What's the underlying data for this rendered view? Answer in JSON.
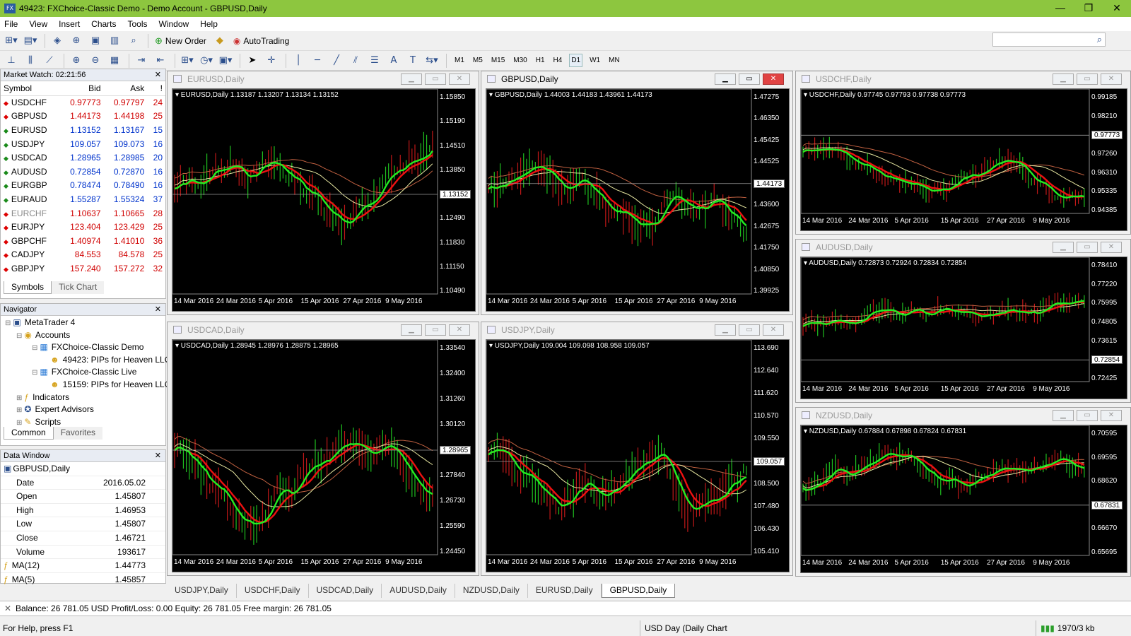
{
  "window": {
    "title": "49423: FXChoice-Classic Demo - Demo Account - GBPUSD,Daily",
    "minimize": "—",
    "restore": "❐",
    "close": "✕"
  },
  "menu": [
    "File",
    "View",
    "Insert",
    "Charts",
    "Tools",
    "Window",
    "Help"
  ],
  "toolbar": {
    "new_order": "New Order",
    "autotrading": "AutoTrading"
  },
  "timeframes": [
    "M1",
    "M5",
    "M15",
    "M30",
    "H1",
    "H4",
    "D1",
    "W1",
    "MN"
  ],
  "active_timeframe": "D1",
  "market_watch": {
    "title": "Market Watch: 02:21:56",
    "columns": [
      "Symbol",
      "Bid",
      "Ask",
      "!"
    ],
    "rows": [
      [
        "USDCHF",
        "0.97773",
        "0.97797",
        "24"
      ],
      [
        "GBPUSD",
        "1.44173",
        "1.44198",
        "25"
      ],
      [
        "EURUSD",
        "1.13152",
        "1.13167",
        "15"
      ],
      [
        "USDJPY",
        "109.057",
        "109.073",
        "16"
      ],
      [
        "USDCAD",
        "1.28965",
        "1.28985",
        "20"
      ],
      [
        "AUDUSD",
        "0.72854",
        "0.72870",
        "16"
      ],
      [
        "EURGBP",
        "0.78474",
        "0.78490",
        "16"
      ],
      [
        "EURAUD",
        "1.55287",
        "1.55324",
        "37"
      ],
      [
        "EURCHF",
        "1.10637",
        "1.10665",
        "28"
      ],
      [
        "EURJPY",
        "123.404",
        "123.429",
        "25"
      ],
      [
        "GBPCHF",
        "1.40974",
        "1.41010",
        "36"
      ],
      [
        "CADJPY",
        "84.553",
        "84.578",
        "25"
      ],
      [
        "GBPJPY",
        "157.240",
        "157.272",
        "32"
      ]
    ],
    "row_colors": [
      "red",
      "red",
      "blue",
      "blue",
      "blue",
      "blue",
      "blue",
      "blue",
      "red",
      "red",
      "red",
      "red",
      "red"
    ],
    "tabs": [
      "Symbols",
      "Tick Chart"
    ]
  },
  "navigator": {
    "title": "Navigator",
    "items": [
      {
        "label": "MetaTrader 4",
        "level": 0,
        "icon": "terminal-icon"
      },
      {
        "label": "Accounts",
        "level": 1,
        "icon": "accounts-icon"
      },
      {
        "label": "FXChoice-Classic Demo",
        "level": 2,
        "icon": "server-icon"
      },
      {
        "label": "49423: PIPs for Heaven LLC",
        "level": 3,
        "icon": "user-icon"
      },
      {
        "label": "FXChoice-Classic Live",
        "level": 2,
        "icon": "server-icon"
      },
      {
        "label": "15159: PIPs for Heaven LLC",
        "level": 3,
        "icon": "user-icon"
      },
      {
        "label": "Indicators",
        "level": 1,
        "icon": "indicators-icon"
      },
      {
        "label": "Expert Advisors",
        "level": 1,
        "icon": "expert-icon"
      },
      {
        "label": "Scripts",
        "level": 1,
        "icon": "scripts-icon"
      }
    ],
    "tabs": [
      "Common",
      "Favorites"
    ]
  },
  "data_window": {
    "title": "Data Window",
    "symbol": "GBPUSD,Daily",
    "rows": [
      [
        "Date",
        "2016.05.02"
      ],
      [
        "Open",
        "1.45807"
      ],
      [
        "High",
        "1.46953"
      ],
      [
        "Low",
        "1.45807"
      ],
      [
        "Close",
        "1.46721"
      ],
      [
        "Volume",
        "193617"
      ],
      [
        "MA(12)",
        "1.44773"
      ],
      [
        "MA(5)",
        "1.45857"
      ]
    ]
  },
  "charts": [
    {
      "key": "eurusd",
      "title": "EURUSD,Daily",
      "ohlc": "EURUSD,Daily  1.13187 1.13207 1.13134 1.13152",
      "price_labels": [
        "1.15850",
        "1.15190",
        "1.14510",
        "1.13850",
        "1.13152",
        "1.12490",
        "1.11830",
        "1.11150",
        "1.10490"
      ],
      "current": "1.13152",
      "dates": [
        "14 Mar 2016",
        "24 Mar 2016",
        "5 Apr 2016",
        "15 Apr 2016",
        "27 Apr 2016",
        "9 May 2016"
      ],
      "active": false
    },
    {
      "key": "gbpusd",
      "title": "GBPUSD,Daily",
      "ohlc": "GBPUSD,Daily  1.44003 1.44183 1.43961 1.44173",
      "price_labels": [
        "1.47275",
        "1.46350",
        "1.45425",
        "1.44525",
        "1.44173",
        "1.43600",
        "1.42675",
        "1.41750",
        "1.40850",
        "1.39925"
      ],
      "current": "1.44173",
      "dates": [
        "14 Mar 2016",
        "24 Mar 2016",
        "5 Apr 2016",
        "15 Apr 2016",
        "27 Apr 2016",
        "9 May 2016"
      ],
      "active": true
    },
    {
      "key": "usdchf",
      "title": "USDCHF,Daily",
      "ohlc": "USDCHF,Daily  0.97745 0.97793 0.97738 0.97773",
      "price_labels": [
        "0.99185",
        "0.98210",
        "0.97773",
        "0.97260",
        "0.96310",
        "0.95335",
        "0.94385"
      ],
      "current": "0.97773",
      "dates": [
        "14 Mar 2016",
        "24 Mar 2016",
        "5 Apr 2016",
        "15 Apr 2016",
        "27 Apr 2016",
        "9 May 2016"
      ],
      "active": false
    },
    {
      "key": "usdcad",
      "title": "USDCAD,Daily",
      "ohlc": "USDCAD,Daily  1.28945 1.28976 1.28875 1.28965",
      "price_labels": [
        "1.33540",
        "1.32400",
        "1.31260",
        "1.30120",
        "1.28965",
        "1.27840",
        "1.26730",
        "1.25590",
        "1.24450"
      ],
      "current": "1.28965",
      "dates": [
        "14 Mar 2016",
        "24 Mar 2016",
        "5 Apr 2016",
        "15 Apr 2016",
        "27 Apr 2016",
        "9 May 2016"
      ],
      "active": false
    },
    {
      "key": "usdjpy",
      "title": "USDJPY,Daily",
      "ohlc": "USDJPY,Daily  109.004 109.098 108.958 109.057",
      "price_labels": [
        "113.690",
        "112.640",
        "111.620",
        "110.570",
        "109.550",
        "109.057",
        "108.500",
        "107.480",
        "106.430",
        "105.410"
      ],
      "current": "109.057",
      "dates": [
        "14 Mar 2016",
        "24 Mar 2016",
        "5 Apr 2016",
        "15 Apr 2016",
        "27 Apr 2016",
        "9 May 2016"
      ],
      "active": false
    },
    {
      "key": "audusd",
      "title": "AUDUSD,Daily",
      "ohlc": "AUDUSD,Daily  0.72873 0.72924 0.72834 0.72854",
      "price_labels": [
        "0.78410",
        "0.77220",
        "0.75995",
        "0.74805",
        "0.73615",
        "0.72854",
        "0.72425"
      ],
      "current": "0.72854",
      "dates": [
        "14 Mar 2016",
        "24 Mar 2016",
        "5 Apr 2016",
        "15 Apr 2016",
        "27 Apr 2016",
        "9 May 2016"
      ],
      "active": false
    },
    {
      "key": "nzdusd",
      "title": "NZDUSD,Daily",
      "ohlc": "NZDUSD,Daily  0.67884 0.67898 0.67824 0.67831",
      "price_labels": [
        "0.70595",
        "0.69595",
        "0.68620",
        "0.67831",
        "0.66670",
        "0.65695"
      ],
      "current": "0.67831",
      "dates": [
        "14 Mar 2016",
        "24 Mar 2016",
        "5 Apr 2016",
        "15 Apr 2016",
        "27 Apr 2016",
        "9 May 2016"
      ],
      "active": false
    }
  ],
  "chart_tabs": [
    "USDJPY,Daily",
    "USDCHF,Daily",
    "USDCAD,Daily",
    "AUDUSD,Daily",
    "NZDUSD,Daily",
    "EURUSD,Daily",
    "GBPUSD,Daily"
  ],
  "active_chart_tab": "GBPUSD,Daily",
  "balance_bar": {
    "text": "Balance: 26 781.05 USD  Profit/Loss: 0.00  Equity: 26 781.05  Free margin: 26 781.05"
  },
  "status": {
    "help": "For Help, press F1",
    "profile": "USD Day (Daily Chart",
    "traffic": "1970/3 kb"
  },
  "colors": {
    "title_bar": "#8dc63f",
    "chart_bg": "#000000",
    "fast_ma": "#22ee22",
    "slow_ma": "#ee1111",
    "ma_long": "#e6e6a0",
    "ma_longest": "#c06040"
  }
}
